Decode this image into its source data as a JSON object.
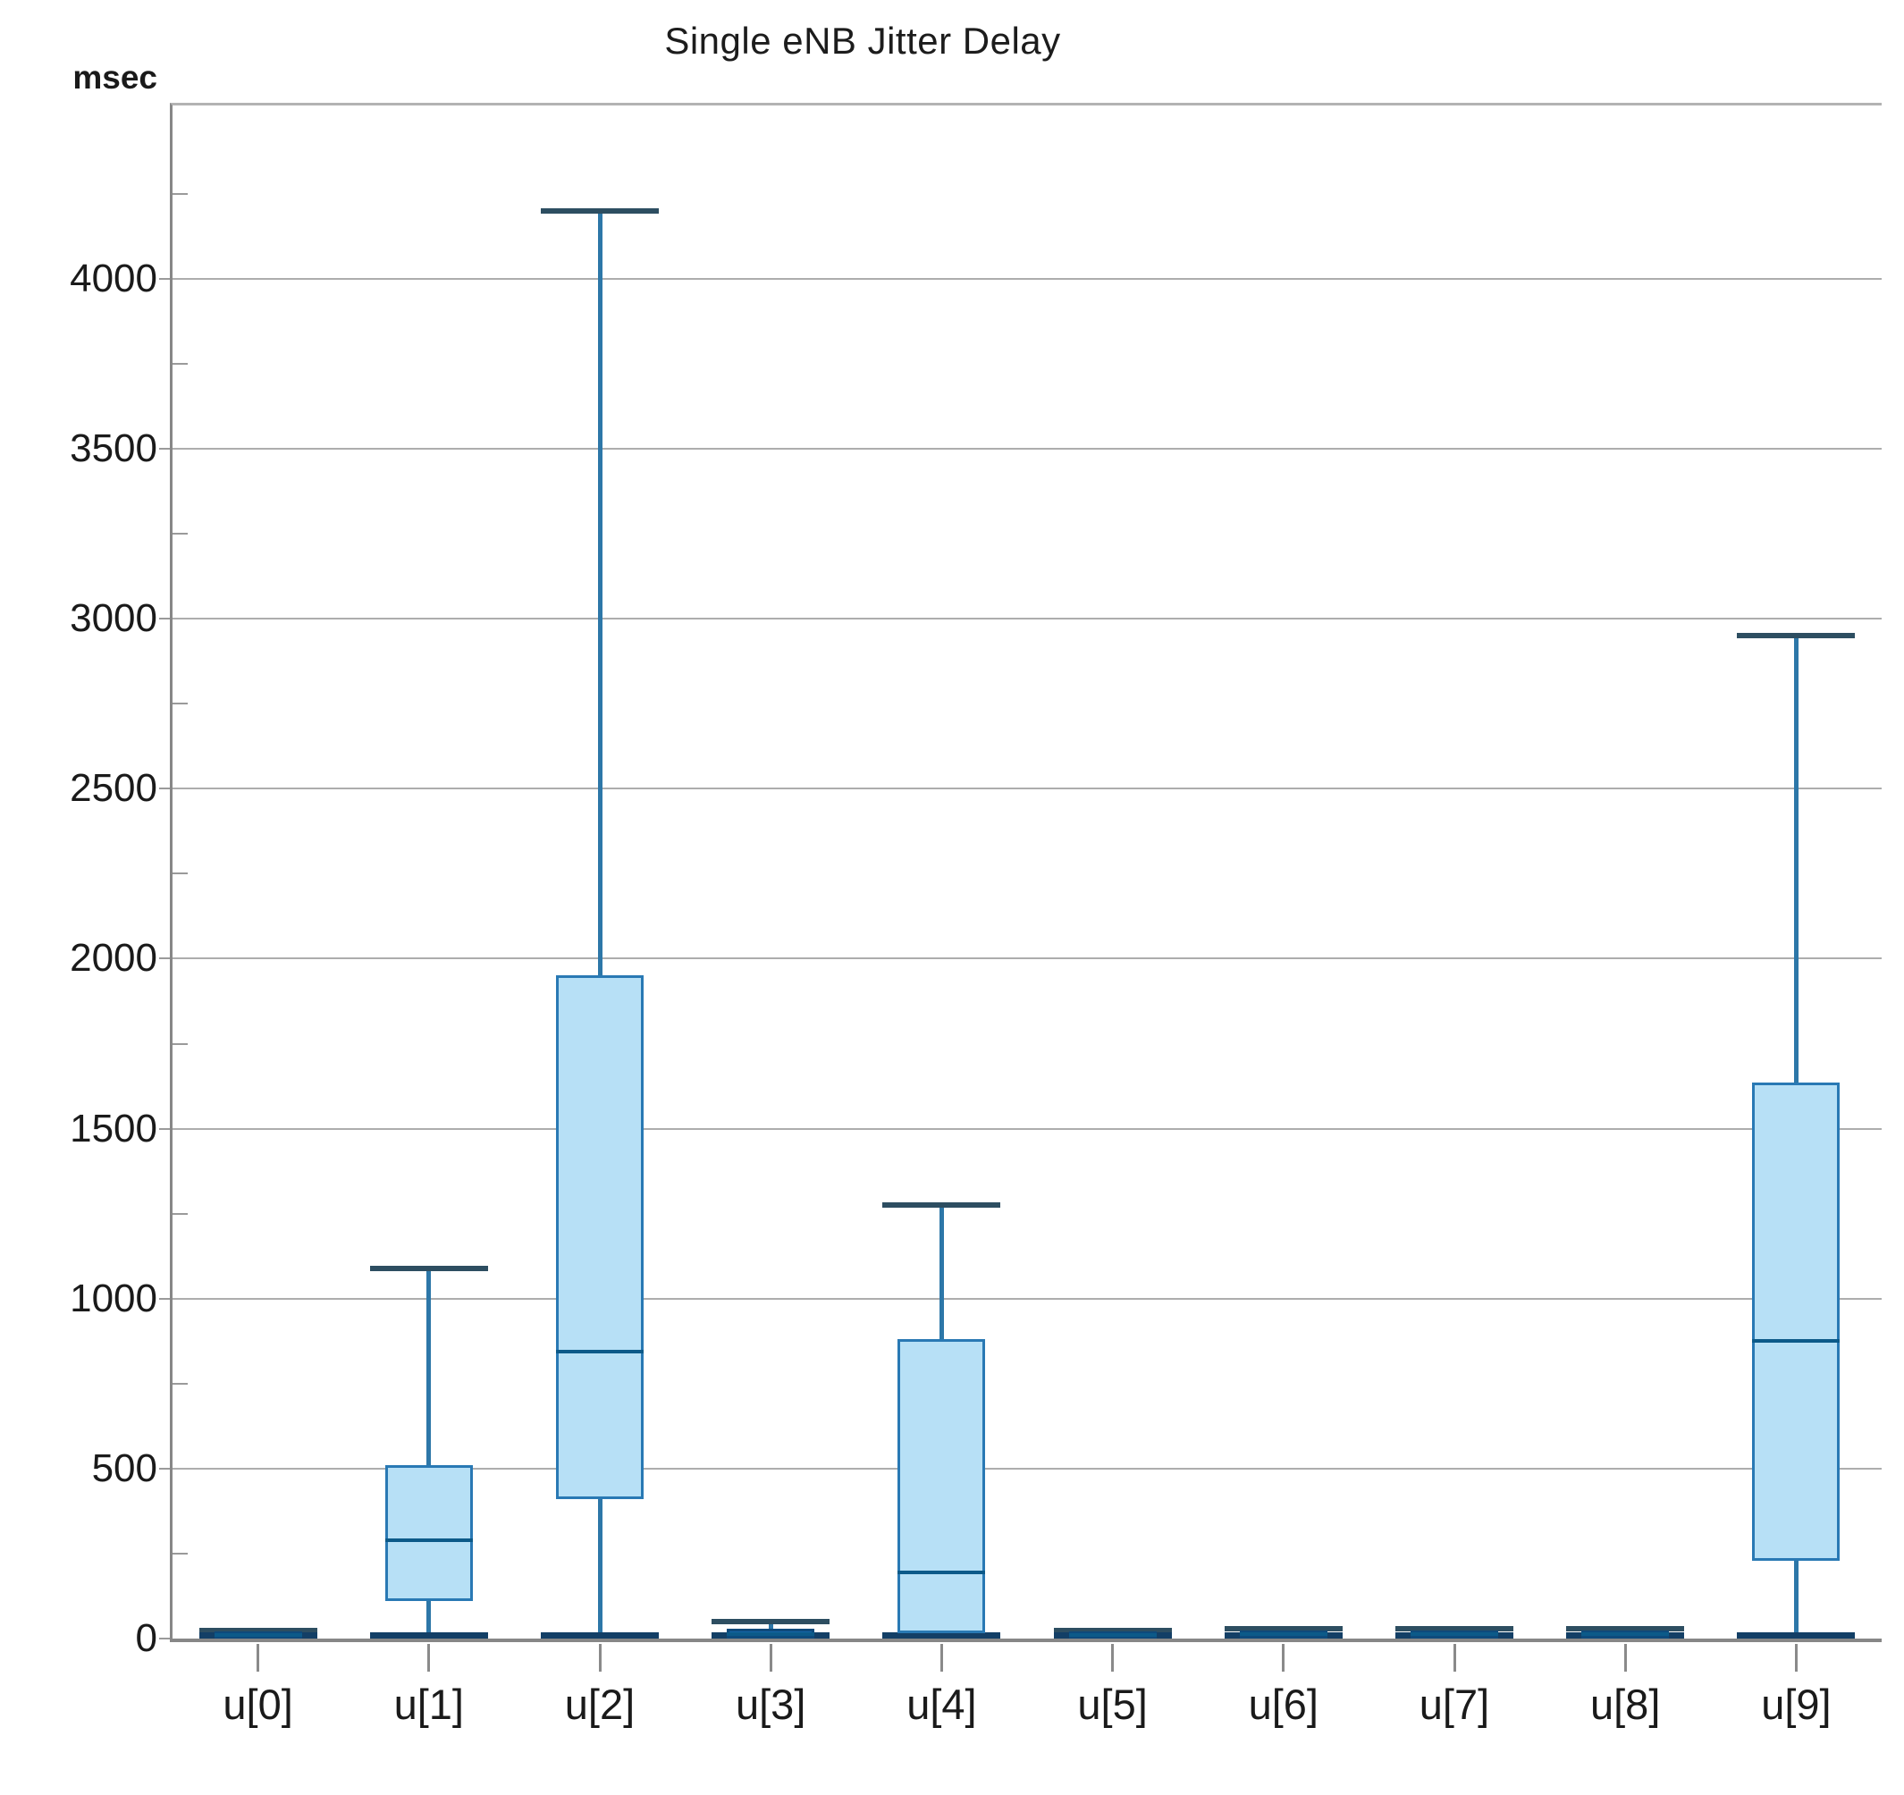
{
  "title": "Single eNB Jitter Delay",
  "y_axis": {
    "unit_label": "msec",
    "min": 0,
    "max": 4510,
    "major_tick_step": 500,
    "minor_tick_step": 250,
    "tick_labels": [
      "0",
      "500",
      "1000",
      "1500",
      "2000",
      "2500",
      "3000",
      "3500",
      "4000"
    ]
  },
  "chart_data": {
    "type": "boxplot",
    "title": "Single eNB Jitter Delay",
    "xlabel": "",
    "ylabel": "msec",
    "ylim": [
      0,
      4510
    ],
    "grid": true,
    "categories": [
      "u[0]",
      "u[1]",
      "u[2]",
      "u[3]",
      "u[4]",
      "u[5]",
      "u[6]",
      "u[7]",
      "u[8]",
      "u[9]"
    ],
    "boxes": [
      {
        "category": "u[0]",
        "min": 0,
        "q1": 0,
        "median": 10,
        "q3": 20,
        "max": 25
      },
      {
        "category": "u[1]",
        "min": 0,
        "q1": 110,
        "median": 290,
        "q3": 510,
        "max": 1090
      },
      {
        "category": "u[2]",
        "min": 0,
        "q1": 410,
        "median": 845,
        "q3": 1950,
        "max": 4200
      },
      {
        "category": "u[3]",
        "min": 0,
        "q1": 0,
        "median": 12,
        "q3": 28,
        "max": 50
      },
      {
        "category": "u[4]",
        "min": 0,
        "q1": 15,
        "median": 195,
        "q3": 880,
        "max": 1275
      },
      {
        "category": "u[5]",
        "min": 0,
        "q1": 0,
        "median": 10,
        "q3": 20,
        "max": 25
      },
      {
        "category": "u[6]",
        "min": 0,
        "q1": 0,
        "median": 12,
        "q3": 25,
        "max": 30
      },
      {
        "category": "u[7]",
        "min": 0,
        "q1": 0,
        "median": 12,
        "q3": 25,
        "max": 30
      },
      {
        "category": "u[8]",
        "min": 0,
        "q1": 0,
        "median": 12,
        "q3": 25,
        "max": 30
      },
      {
        "category": "u[9]",
        "min": 0,
        "q1": 230,
        "median": 875,
        "q3": 1635,
        "max": 2950
      }
    ]
  },
  "colors": {
    "box_fill": "#b7e0f6",
    "box_border": "#2979b4",
    "flat_box_fill": "#1566a8",
    "median": "#0c5a89",
    "whisker": "#2d77a8",
    "whisker_cap": "#2d4e61",
    "gridline": "#adadad",
    "axis": "#878787",
    "text": "#1a1a1a"
  }
}
